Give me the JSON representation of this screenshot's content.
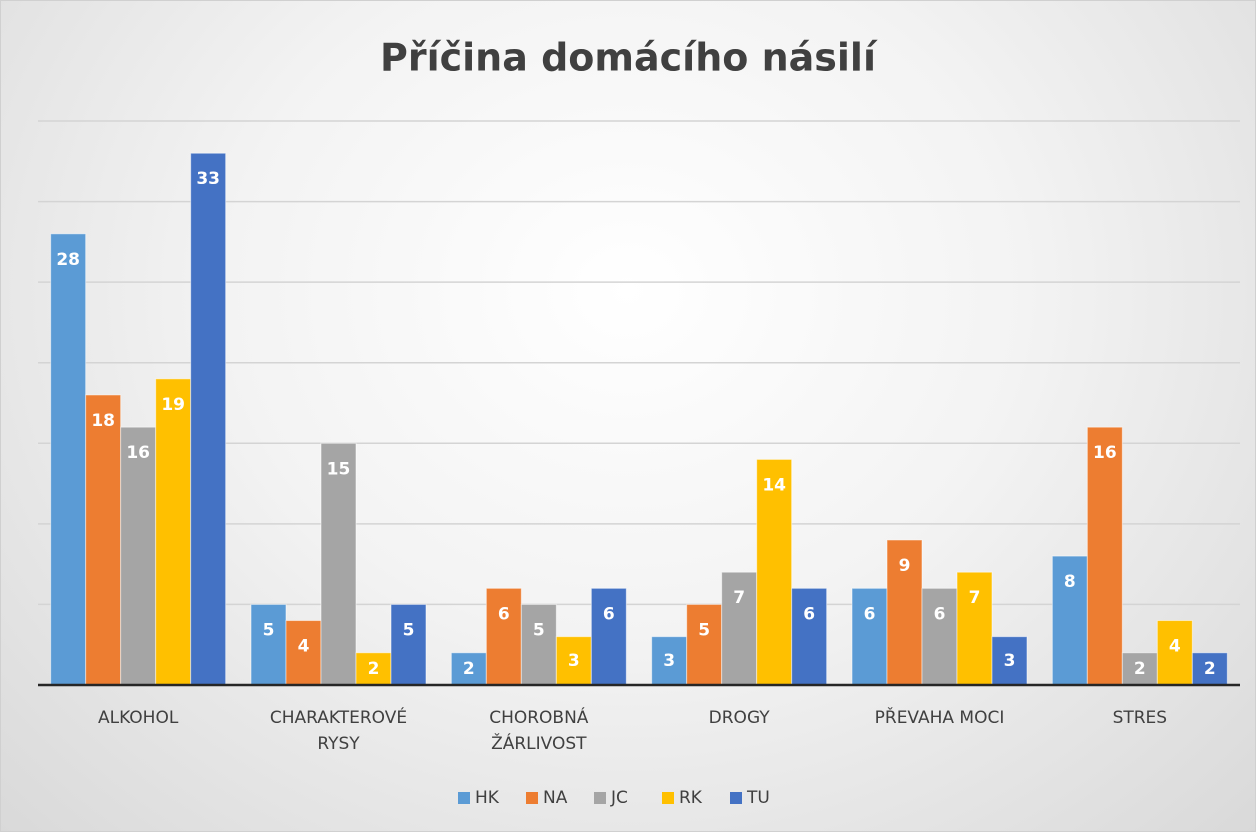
{
  "chart_data": {
    "type": "bar",
    "title": "Příčina domácího násilí",
    "categories": [
      "ALKOHOL",
      "CHARAKTEROVÉ RYSY",
      "CHOROBNÁ ŽÁRLIVOST",
      "DROGY",
      "PŘEVAHA MOCI",
      "STRES"
    ],
    "series": [
      {
        "name": "HK",
        "color": "#5b9bd5",
        "values": [
          28,
          5,
          2,
          3,
          6,
          8
        ]
      },
      {
        "name": "NA",
        "color": "#ed7d31",
        "values": [
          18,
          4,
          6,
          5,
          9,
          16
        ]
      },
      {
        "name": "JC",
        "color": "#a5a5a5",
        "values": [
          16,
          15,
          5,
          7,
          6,
          2
        ]
      },
      {
        "name": "RK",
        "color": "#ffc000",
        "values": [
          19,
          2,
          3,
          14,
          7,
          4
        ]
      },
      {
        "name": "TU",
        "color": "#4472c4",
        "values": [
          33,
          5,
          6,
          6,
          3,
          2
        ]
      }
    ],
    "ylim": [
      0,
      35
    ],
    "yticks": [
      0,
      5,
      10,
      15,
      20,
      25,
      30,
      35
    ],
    "grid": true,
    "legend": "bottom"
  }
}
